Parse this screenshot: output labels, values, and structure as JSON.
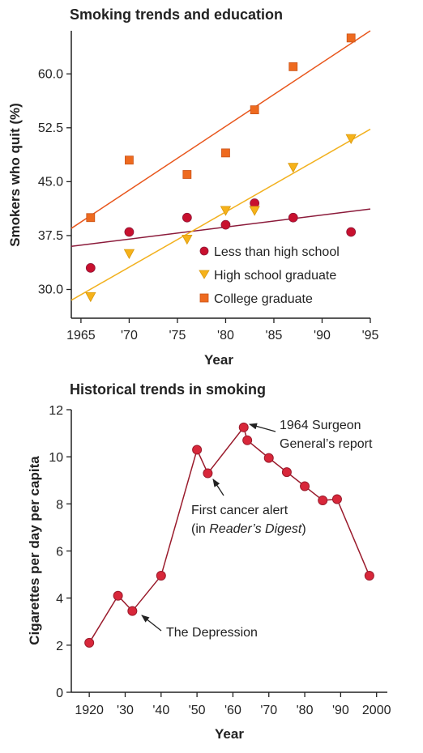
{
  "colors": {
    "less_than_hs": "#c8102e",
    "hs_graduate": "#f6b21a",
    "college_graduate": "#ee6a1f",
    "less_than_hs_line": "#8b1a3a",
    "hs_graduate_line": "#f2b11f",
    "college_graduate_line": "#e8561c",
    "historical": "#9a1b2c",
    "historical_point": "#d8273a"
  },
  "chart_data": [
    {
      "type": "scatter",
      "title": "Smoking trends and education",
      "xlabel": "Year",
      "ylabel": "Smokers who quit (%)",
      "xlim": [
        1964,
        1995
      ],
      "ylim": [
        26,
        66
      ],
      "x_ticks": [
        1965,
        1970,
        1975,
        1980,
        1985,
        1990,
        1995
      ],
      "x_tick_labels": [
        "1965",
        "'70",
        "'75",
        "'80",
        "'85",
        "'90",
        "'95"
      ],
      "y_ticks": [
        30,
        37.5,
        45,
        52.5,
        60
      ],
      "y_tick_labels": [
        "30.0",
        "37.5",
        "45.0",
        "52.5",
        "60.0"
      ],
      "legend_position": "bottom-right",
      "series": [
        {
          "name": "Less than high school",
          "marker": "circle",
          "x": [
            1966,
            1970,
            1976,
            1980,
            1983,
            1987,
            1993
          ],
          "y": [
            33,
            38,
            40,
            39,
            42,
            40,
            38
          ],
          "trend": [
            [
              1964,
              36
            ],
            [
              1995,
              41.2
            ]
          ]
        },
        {
          "name": "High school graduate",
          "marker": "triangle-down",
          "x": [
            1966,
            1970,
            1976,
            1980,
            1983,
            1987,
            1993
          ],
          "y": [
            29,
            35,
            37,
            41,
            41,
            47,
            51
          ],
          "trend": [
            [
              1964,
              28.5
            ],
            [
              1995,
              52.3
            ]
          ]
        },
        {
          "name": "College graduate",
          "marker": "square",
          "x": [
            1966,
            1970,
            1976,
            1980,
            1983,
            1987,
            1993
          ],
          "y": [
            40,
            48,
            46,
            49,
            55,
            61,
            65
          ],
          "trend": [
            [
              1964,
              38.5
            ],
            [
              1995,
              66
            ]
          ]
        }
      ]
    },
    {
      "type": "line",
      "title": "Historical trends in smoking",
      "xlabel": "Year",
      "ylabel": "Cigarettes per day per capita",
      "xlim": [
        1915,
        2003
      ],
      "ylim": [
        0,
        12
      ],
      "x_ticks": [
        1920,
        1930,
        1940,
        1950,
        1960,
        1970,
        1980,
        1990,
        2000
      ],
      "x_tick_labels": [
        "1920",
        "'30",
        "'40",
        "'50",
        "'60",
        "'70",
        "'80",
        "'90",
        "2000"
      ],
      "y_ticks": [
        0,
        2,
        4,
        6,
        8,
        10,
        12
      ],
      "y_tick_labels": [
        "0",
        "2",
        "4",
        "6",
        "8",
        "10",
        "12"
      ],
      "series": [
        {
          "x": [
            1920,
            1928,
            1932,
            1940,
            1950,
            1953,
            1963,
            1964,
            1970,
            1975,
            1980,
            1985,
            1989,
            1998
          ],
          "y": [
            2.1,
            4.1,
            3.45,
            4.95,
            10.3,
            9.3,
            11.25,
            10.7,
            9.95,
            9.35,
            8.75,
            8.15,
            8.2,
            4.95
          ]
        }
      ],
      "annotations": [
        {
          "lines": [
            "1964 Surgeon",
            "General’s report"
          ],
          "x": 1964,
          "y": 11.25
        },
        {
          "lines": [
            "First cancer alert"
          ],
          "italic_line": [
            "(in ",
            "Reader’s Digest",
            ")"
          ],
          "x": 1953,
          "y": 9.3
        },
        {
          "lines": [
            "The Depression"
          ],
          "x": 1932,
          "y": 3.45
        }
      ]
    }
  ]
}
